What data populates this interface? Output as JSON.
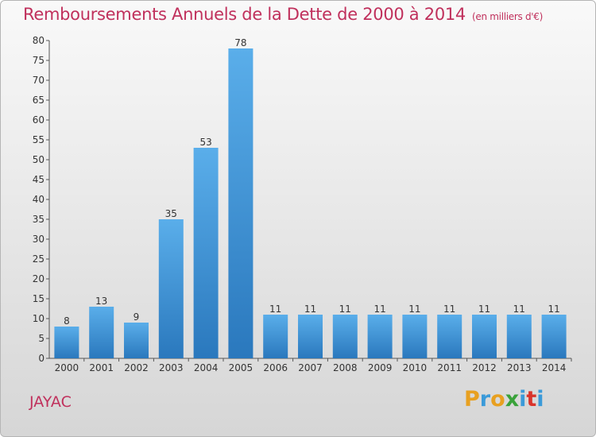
{
  "header": {
    "title": "Remboursements Annuels de la Dette de 2000 à 2014",
    "unit": "(en milliers d'€)"
  },
  "commune": "JAYAC",
  "logo": {
    "letters": [
      "P",
      "r",
      "o",
      "x",
      "i",
      "t",
      "i"
    ],
    "colors": [
      "#e8a020",
      "#3a9ad9",
      "#e8a020",
      "#3aa23a",
      "#3a9ad9",
      "#d9342b",
      "#3a9ad9"
    ]
  },
  "chart_data": {
    "type": "bar",
    "title": "Remboursements Annuels de la Dette de 2000 à 2014",
    "subtitle": "(en milliers d'€)",
    "xlabel": "",
    "ylabel": "",
    "categories": [
      "2000",
      "2001",
      "2002",
      "2003",
      "2004",
      "2005",
      "2006",
      "2007",
      "2008",
      "2009",
      "2010",
      "2011",
      "2012",
      "2013",
      "2014"
    ],
    "values": [
      8,
      13,
      9,
      35,
      53,
      78,
      11,
      11,
      11,
      11,
      11,
      11,
      11,
      11,
      11
    ],
    "ylim": [
      0,
      80
    ],
    "yticks": [
      0,
      5,
      10,
      15,
      20,
      25,
      30,
      35,
      40,
      45,
      50,
      55,
      60,
      65,
      70,
      75,
      80
    ],
    "grid": false,
    "bar_color_top": "#5aaeea",
    "bar_color_bottom": "#2a78bd"
  }
}
